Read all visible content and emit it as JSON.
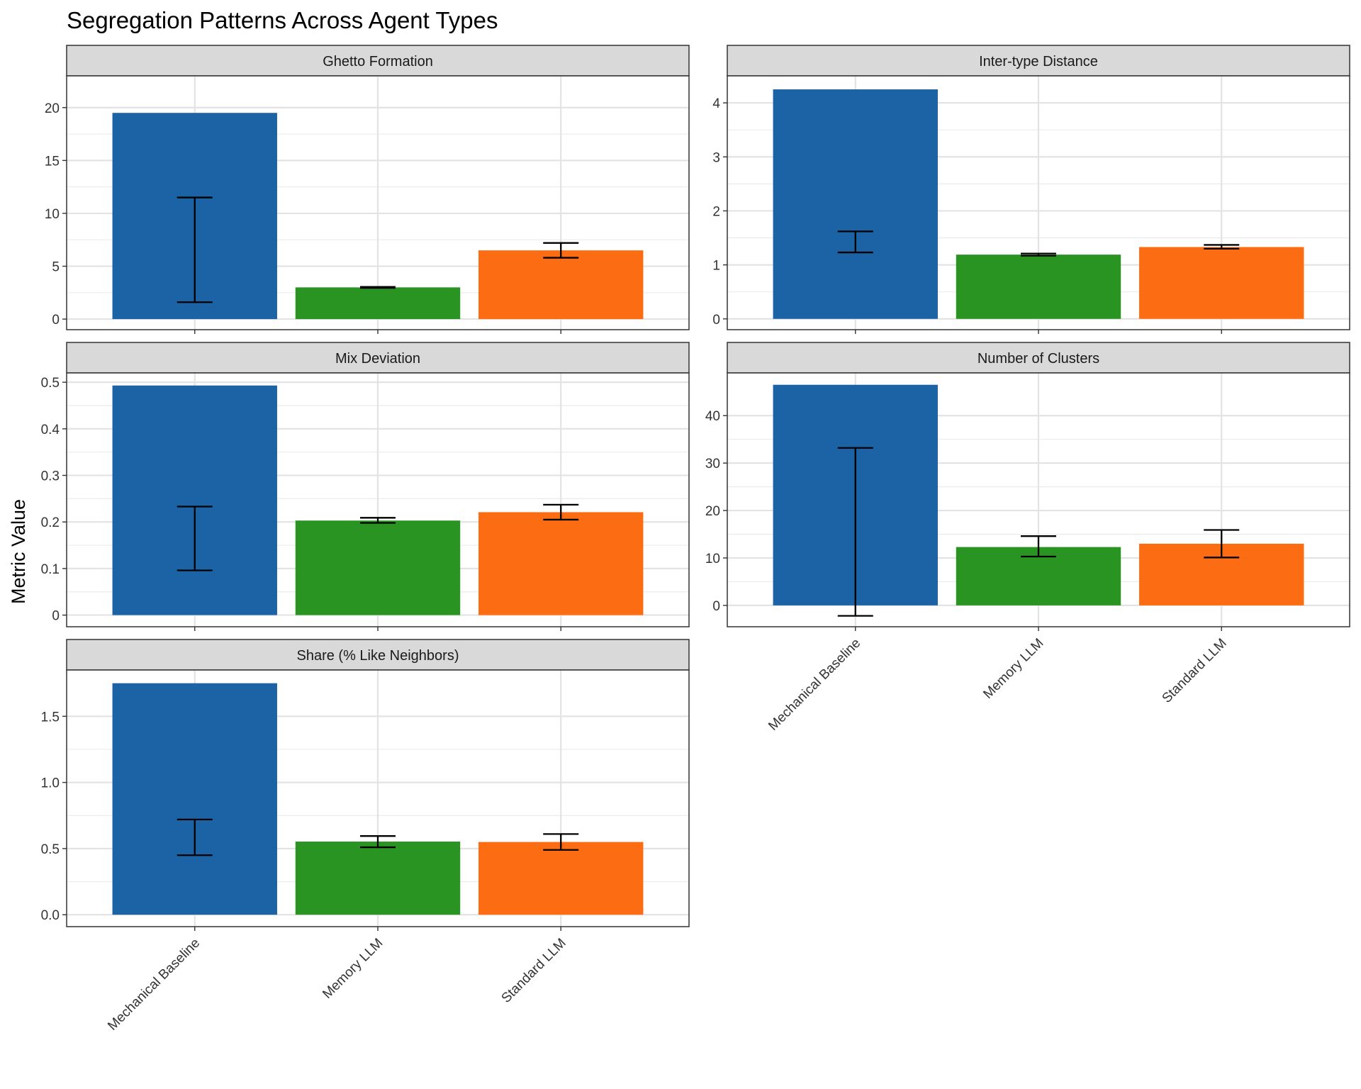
{
  "chart_data": {
    "type": "bar",
    "title": "Segregation Patterns Across Agent Types",
    "ylabel": "Metric Value",
    "xlabel": "",
    "categories": [
      "Mechanical Baseline",
      "Memory LLM",
      "Standard LLM"
    ],
    "colors": {
      "Mechanical Baseline": "#1c63a6",
      "Memory LLM": "#2a9422",
      "Standard LLM": "#fc6d13"
    },
    "grid": true,
    "legend": "none",
    "facets": [
      {
        "name": "Ghetto Formation",
        "ylim": [
          -1,
          23
        ],
        "ticks": [
          0,
          5,
          10,
          15,
          20
        ],
        "values": [
          19.5,
          3.0,
          6.5
        ],
        "error_low": [
          1.6,
          2.95,
          5.8
        ],
        "error_high": [
          11.5,
          3.05,
          7.2
        ]
      },
      {
        "name": "Inter-type Distance",
        "ylim": [
          -0.2,
          4.5
        ],
        "ticks": [
          0,
          1,
          2,
          3,
          4
        ],
        "values": [
          4.25,
          1.19,
          1.33
        ],
        "error_low": [
          1.23,
          1.17,
          1.3
        ],
        "error_high": [
          1.62,
          1.21,
          1.37
        ]
      },
      {
        "name": "Mix Deviation",
        "ylim": [
          -0.025,
          0.52
        ],
        "ticks": [
          0.0,
          0.1,
          0.2,
          0.3,
          0.4,
          0.5
        ],
        "values": [
          0.493,
          0.203,
          0.221
        ],
        "error_low": [
          0.096,
          0.198,
          0.205
        ],
        "error_high": [
          0.233,
          0.209,
          0.237
        ]
      },
      {
        "name": "Number of Clusters",
        "ylim": [
          -4.5,
          49
        ],
        "ticks": [
          0,
          10,
          20,
          30,
          40
        ],
        "values": [
          46.5,
          12.3,
          13.0
        ],
        "error_low": [
          -2.2,
          10.3,
          10.1
        ],
        "error_high": [
          33.2,
          14.6,
          15.9
        ]
      },
      {
        "name": "Share (% Like Neighbors)",
        "ylim": [
          -0.09,
          1.85
        ],
        "ticks": [
          0.0,
          0.5,
          1.0,
          1.5
        ],
        "tick_labels": [
          "0.0",
          "0.5",
          "1.0",
          "1.5"
        ],
        "values": [
          1.75,
          0.553,
          0.55
        ],
        "error_low": [
          0.45,
          0.51,
          0.49
        ],
        "error_high": [
          0.72,
          0.595,
          0.61
        ]
      }
    ]
  }
}
